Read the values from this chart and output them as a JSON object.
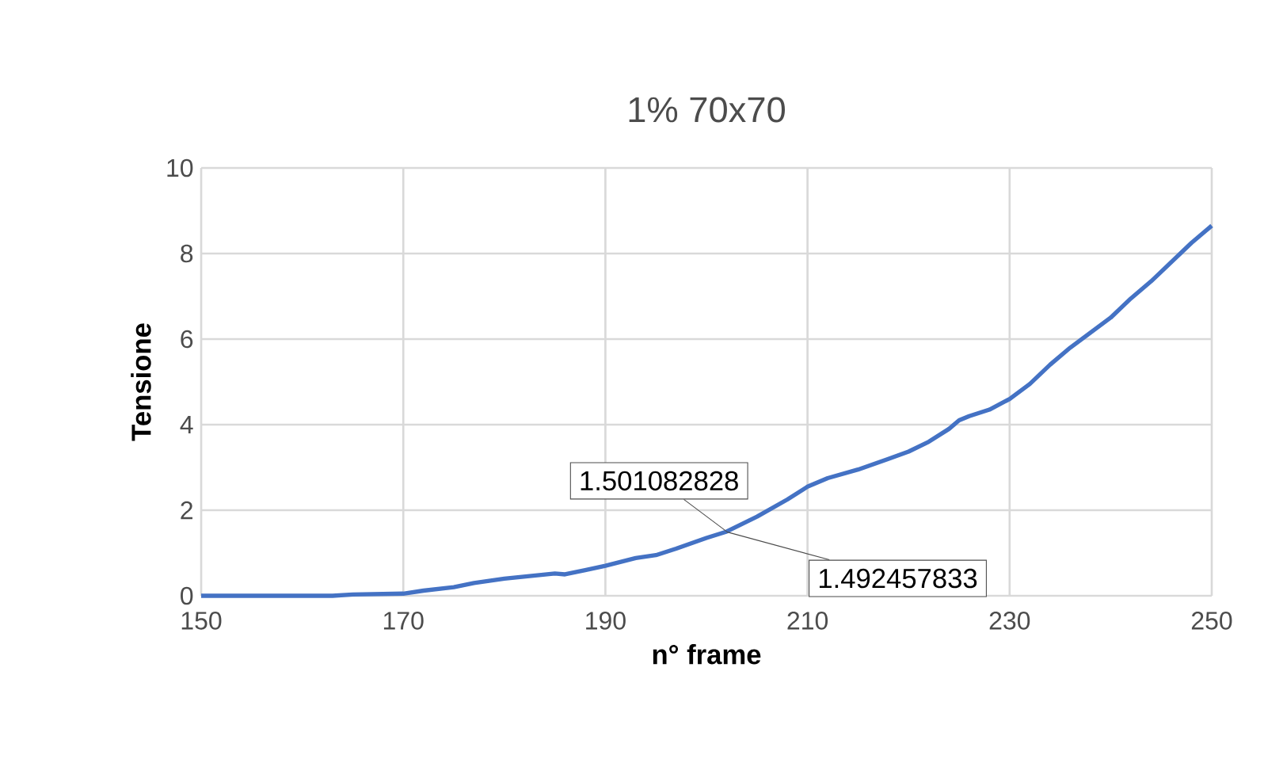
{
  "chart_data": {
    "type": "line",
    "title": "1% 70x70",
    "xlabel": "n° frame",
    "ylabel": "Tensione",
    "x": [
      150,
      160,
      163,
      165,
      170,
      172,
      175,
      177,
      180,
      185,
      186,
      188,
      190,
      193,
      195,
      197,
      200,
      202,
      205,
      208,
      210,
      212,
      215,
      218,
      220,
      222,
      224,
      225,
      226,
      228,
      230,
      232,
      234,
      236,
      238,
      240,
      242,
      244,
      246,
      248,
      250
    ],
    "values": [
      0,
      0,
      0,
      0.03,
      0.05,
      0.12,
      0.2,
      0.3,
      0.4,
      0.52,
      0.5,
      0.6,
      0.7,
      0.88,
      0.95,
      1.1,
      1.35,
      1.5,
      1.85,
      2.25,
      2.55,
      2.75,
      2.95,
      3.2,
      3.37,
      3.6,
      3.9,
      4.1,
      4.2,
      4.35,
      4.6,
      4.95,
      5.4,
      5.8,
      6.15,
      6.5,
      6.95,
      7.35,
      7.8,
      8.25,
      8.65
    ],
    "color": "#4472c4",
    "xlim": [
      150,
      250
    ],
    "ylim": [
      0,
      10
    ],
    "xticks": [
      150,
      170,
      190,
      210,
      230,
      250
    ],
    "yticks": [
      0,
      2,
      4,
      6,
      8,
      10
    ],
    "grid": true,
    "annotations": [
      {
        "text": "1.501082828",
        "x": 202,
        "y": 1.501082828
      },
      {
        "text": "1.492457833",
        "x": 202,
        "y": 1.492457833
      }
    ]
  }
}
